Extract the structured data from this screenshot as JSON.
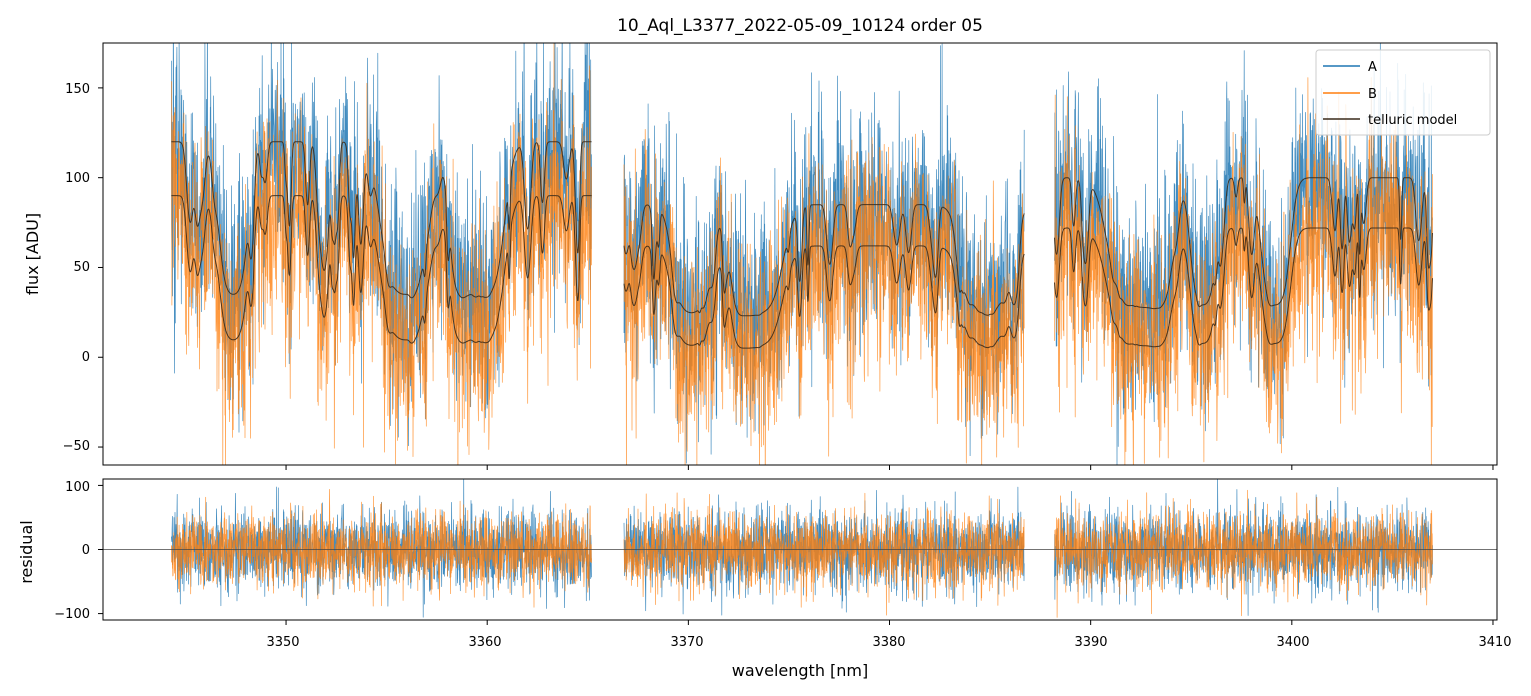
{
  "chart_data": [
    {
      "type": "line",
      "title": "10_Aql_L3377_2022-05-09_10124  order 05",
      "xlabel": "",
      "ylabel": "flux [ADU]",
      "xlim": [
        3340.9,
        3410.2
      ],
      "ylim": [
        -60,
        175
      ],
      "xticks": [
        3350,
        3360,
        3370,
        3380,
        3390,
        3400,
        3410
      ],
      "yticks": [
        -50,
        0,
        50,
        100,
        150
      ],
      "segments": [
        [
          3344.3,
          3365.2
        ],
        [
          3366.8,
          3386.7
        ],
        [
          3388.2,
          3407.0
        ]
      ],
      "series": [
        {
          "name": "A",
          "color": "#1f77b4",
          "kind": "noisy-spectrum",
          "continuum": [
            115,
            82,
            95
          ],
          "noise_sd": 38
        },
        {
          "name": "B",
          "color": "#ff7f0e",
          "kind": "noisy-spectrum",
          "continuum": [
            88,
            60,
            70
          ],
          "noise_sd": 36
        },
        {
          "name": "telluric model",
          "color": "#3a2a1a",
          "kind": "model",
          "continuum_a": [
            120,
            85,
            100
          ],
          "continuum_b": [
            90,
            62,
            72
          ]
        }
      ],
      "legend": {
        "entries": [
          "A",
          "B",
          "telluric model"
        ],
        "location": "upper right"
      }
    },
    {
      "type": "line",
      "title": "",
      "xlabel": "wavelength [nm]",
      "ylabel": "residual",
      "xlim": [
        3340.9,
        3410.2
      ],
      "ylim": [
        -110,
        110
      ],
      "xticks": [
        3350,
        3360,
        3370,
        3380,
        3390,
        3400,
        3410
      ],
      "yticks": [
        -100,
        0,
        100
      ],
      "reference_line": 0,
      "series": [
        {
          "name": "A",
          "color": "#1f77b4",
          "kind": "residual",
          "noise_sd": 32
        },
        {
          "name": "B",
          "color": "#ff7f0e",
          "kind": "residual",
          "noise_sd": 30
        }
      ]
    }
  ],
  "title_text": "10_Aql_L3377_2022-05-09_10124  order 05",
  "top_ylabel": "flux [ADU]",
  "bottom_ylabel": "residual",
  "xlabel": "wavelength [nm]",
  "legend": {
    "a": "A",
    "b": "B",
    "model": "telluric model"
  },
  "xtick_labels": [
    "3350",
    "3360",
    "3370",
    "3380",
    "3390",
    "3400",
    "3410"
  ],
  "top_ytick_labels": [
    "150",
    "100",
    "50",
    "0",
    "−50"
  ],
  "bottom_ytick_labels": [
    "100",
    "0",
    "−100"
  ]
}
